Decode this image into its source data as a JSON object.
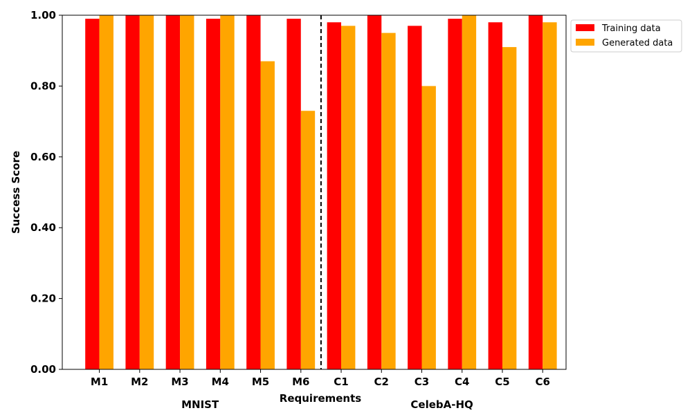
{
  "chart_data": {
    "type": "bar",
    "categories": [
      "M1",
      "M2",
      "M3",
      "M4",
      "M5",
      "M6",
      "C1",
      "C2",
      "C3",
      "C4",
      "C5",
      "C6"
    ],
    "series": [
      {
        "name": "Training data",
        "color": "#ff0000",
        "values": [
          0.99,
          1.0,
          1.0,
          0.99,
          1.0,
          0.99,
          0.98,
          1.0,
          0.97,
          0.99,
          0.98,
          1.0
        ]
      },
      {
        "name": "Generated data",
        "color": "#ffa500",
        "values": [
          1.0,
          1.0,
          1.0,
          1.0,
          0.87,
          0.73,
          0.97,
          0.95,
          0.8,
          1.0,
          0.91,
          0.98
        ]
      }
    ],
    "xlabel": "Requirements",
    "ylabel": "Success Score",
    "ylim": [
      0,
      1
    ],
    "yticks": [
      "0.00",
      "0.20",
      "0.40",
      "0.60",
      "0.80",
      "1.00"
    ],
    "groups": [
      {
        "label": "MNIST",
        "categories": [
          "M1",
          "M2",
          "M3",
          "M4",
          "M5",
          "M6"
        ]
      },
      {
        "label": "CelebA-HQ",
        "categories": [
          "C1",
          "C2",
          "C3",
          "C4",
          "C5",
          "C6"
        ]
      }
    ],
    "separator_after": "M6",
    "legend_position": "outside-top-right",
    "grid": false
  }
}
